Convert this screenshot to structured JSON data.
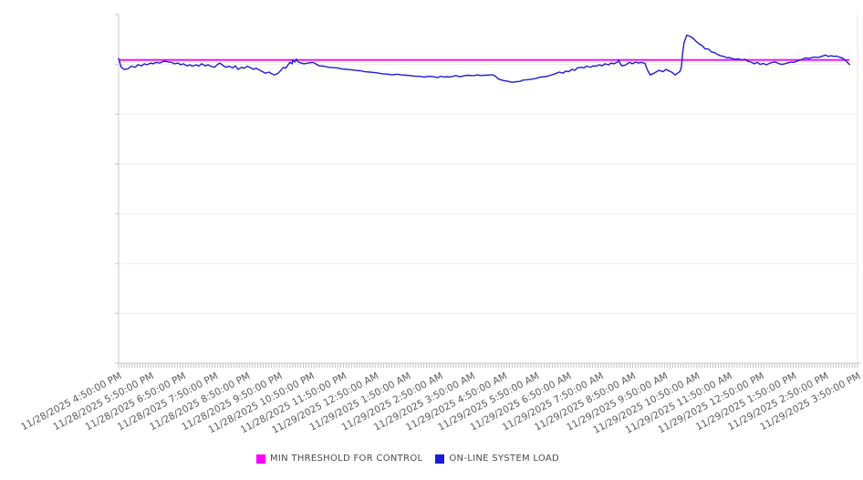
{
  "chart_data": {
    "type": "line",
    "title": "",
    "legend_position": "bottom-center",
    "grid": "horizontal-only",
    "x_axis": {
      "range_minutes": [
        0,
        1380
      ],
      "tick_interval_minutes": 60,
      "minor_tick_interval_minutes": 5,
      "tick_labels": [
        "11/28/2025 4:50:00 PM",
        "11/28/2025 5:50:00 PM",
        "11/28/2025 6:50:00 PM",
        "11/28/2025 7:50:00 PM",
        "11/28/2025 8:50:00 PM",
        "11/28/2025 9:50:00 PM",
        "11/28/2025 10:50:00 PM",
        "11/28/2025 11:50:00 PM",
        "11/29/2025 12:50:00 AM",
        "11/29/2025 1:50:00 AM",
        "11/29/2025 2:50:00 AM",
        "11/29/2025 3:50:00 AM",
        "11/29/2025 4:50:00 AM",
        "11/29/2025 5:50:00 AM",
        "11/29/2025 6:50:00 AM",
        "11/29/2025 7:50:00 AM",
        "11/29/2025 8:50:00 AM",
        "11/29/2025 9:50:00 AM",
        "11/29/2025 10:50:00 AM",
        "11/29/2025 11:50:00 AM",
        "11/29/2025 12:50:00 PM",
        "11/29/2025 1:50:00 PM",
        "11/29/2025 2:50:00 PM",
        "11/29/2025 3:50:00 PM"
      ]
    },
    "y_axis": {
      "labels_visible": false,
      "ylim": [
        0,
        100
      ],
      "gridline_divisions": 7
    },
    "series": [
      {
        "name": "MIN THRESHOLD FOR CONTROL",
        "type": "threshold-line",
        "color": "#ff00ff",
        "value": 87.0,
        "span_minutes": [
          0,
          1365
        ]
      },
      {
        "name": "ON-LINE SYSTEM LOAD",
        "type": "line",
        "color": "#1c1cd8",
        "points": [
          [
            0,
            87.4
          ],
          [
            5,
            84.9
          ],
          [
            10,
            84.3
          ],
          [
            17,
            84.4
          ],
          [
            24,
            85.2
          ],
          [
            31,
            84.9
          ],
          [
            36,
            85.6
          ],
          [
            43,
            85.3
          ],
          [
            48,
            85.9
          ],
          [
            53,
            85.6
          ],
          [
            60,
            86.1
          ],
          [
            65,
            85.9
          ],
          [
            70,
            86.3
          ],
          [
            77,
            86.1
          ],
          [
            82,
            86.5
          ],
          [
            87,
            86.6
          ],
          [
            94,
            86.4
          ],
          [
            99,
            86.3
          ],
          [
            104,
            85.9
          ],
          [
            111,
            86.1
          ],
          [
            116,
            85.6
          ],
          [
            121,
            85.9
          ],
          [
            128,
            85.3
          ],
          [
            133,
            85.6
          ],
          [
            138,
            85.2
          ],
          [
            145,
            85.6
          ],
          [
            150,
            85.2
          ],
          [
            155,
            85.9
          ],
          [
            162,
            85.3
          ],
          [
            167,
            85.6
          ],
          [
            172,
            85.2
          ],
          [
            179,
            84.9
          ],
          [
            184,
            85.6
          ],
          [
            189,
            86.1
          ],
          [
            196,
            85.3
          ],
          [
            201,
            84.9
          ],
          [
            206,
            85.2
          ],
          [
            213,
            84.7
          ],
          [
            218,
            85.3
          ],
          [
            223,
            84.3
          ],
          [
            230,
            84.9
          ],
          [
            235,
            84.6
          ],
          [
            240,
            85.2
          ],
          [
            247,
            84.7
          ],
          [
            252,
            84.3
          ],
          [
            257,
            84.6
          ],
          [
            264,
            84.0
          ],
          [
            269,
            83.6
          ],
          [
            274,
            83.2
          ],
          [
            281,
            83.5
          ],
          [
            286,
            83.0
          ],
          [
            291,
            82.7
          ],
          [
            298,
            83.2
          ],
          [
            303,
            84.0
          ],
          [
            308,
            84.9
          ],
          [
            312,
            84.6
          ],
          [
            315,
            85.3
          ],
          [
            320,
            86.3
          ],
          [
            324,
            85.9
          ],
          [
            325,
            86.9
          ],
          [
            329,
            86.4
          ],
          [
            332,
            87.2
          ],
          [
            334,
            86.6
          ],
          [
            337,
            86.3
          ],
          [
            346,
            85.9
          ],
          [
            354,
            86.1
          ],
          [
            363,
            86.3
          ],
          [
            370,
            85.7
          ],
          [
            375,
            85.3
          ],
          [
            383,
            85.2
          ],
          [
            392,
            84.9
          ],
          [
            400,
            84.8
          ],
          [
            409,
            84.7
          ],
          [
            417,
            84.4
          ],
          [
            426,
            84.3
          ],
          [
            434,
            84.2
          ],
          [
            443,
            84.0
          ],
          [
            451,
            83.9
          ],
          [
            460,
            83.6
          ],
          [
            469,
            83.5
          ],
          [
            477,
            83.4
          ],
          [
            486,
            83.2
          ],
          [
            494,
            83.0
          ],
          [
            503,
            82.9
          ],
          [
            511,
            82.7
          ],
          [
            520,
            82.9
          ],
          [
            528,
            82.7
          ],
          [
            537,
            82.6
          ],
          [
            545,
            82.5
          ],
          [
            554,
            82.3
          ],
          [
            562,
            82.3
          ],
          [
            571,
            82.1
          ],
          [
            579,
            82.3
          ],
          [
            588,
            82.2
          ],
          [
            596,
            81.9
          ],
          [
            601,
            82.3
          ],
          [
            608,
            82.1
          ],
          [
            613,
            82.2
          ],
          [
            618,
            82.1
          ],
          [
            625,
            82.3
          ],
          [
            630,
            82.5
          ],
          [
            636,
            82.2
          ],
          [
            642,
            82.3
          ],
          [
            647,
            82.5
          ],
          [
            653,
            82.6
          ],
          [
            659,
            82.5
          ],
          [
            664,
            82.5
          ],
          [
            670,
            82.7
          ],
          [
            676,
            82.5
          ],
          [
            681,
            82.6
          ],
          [
            687,
            82.6
          ],
          [
            693,
            82.7
          ],
          [
            699,
            82.7
          ],
          [
            704,
            82.3
          ],
          [
            710,
            81.5
          ],
          [
            716,
            81.2
          ],
          [
            721,
            81.0
          ],
          [
            727,
            80.9
          ],
          [
            733,
            80.6
          ],
          [
            738,
            80.6
          ],
          [
            745,
            80.8
          ],
          [
            750,
            80.8
          ],
          [
            755,
            81.2
          ],
          [
            762,
            81.3
          ],
          [
            767,
            81.4
          ],
          [
            772,
            81.5
          ],
          [
            779,
            81.7
          ],
          [
            784,
            81.9
          ],
          [
            789,
            82.1
          ],
          [
            796,
            82.2
          ],
          [
            801,
            82.3
          ],
          [
            806,
            82.6
          ],
          [
            813,
            82.9
          ],
          [
            818,
            83.2
          ],
          [
            823,
            83.5
          ],
          [
            830,
            83.2
          ],
          [
            835,
            83.8
          ],
          [
            840,
            83.6
          ],
          [
            847,
            84.3
          ],
          [
            852,
            84.0
          ],
          [
            857,
            84.7
          ],
          [
            864,
            84.9
          ],
          [
            869,
            84.7
          ],
          [
            874,
            85.2
          ],
          [
            881,
            84.9
          ],
          [
            886,
            85.3
          ],
          [
            891,
            85.2
          ],
          [
            898,
            85.6
          ],
          [
            903,
            85.3
          ],
          [
            908,
            85.9
          ],
          [
            915,
            85.6
          ],
          [
            920,
            86.1
          ],
          [
            925,
            85.9
          ],
          [
            932,
            86.4
          ],
          [
            934,
            87.0
          ],
          [
            937,
            85.9
          ],
          [
            940,
            85.3
          ],
          [
            946,
            85.5
          ],
          [
            954,
            86.3
          ],
          [
            959,
            85.9
          ],
          [
            966,
            86.4
          ],
          [
            971,
            86.1
          ],
          [
            976,
            86.3
          ],
          [
            983,
            86.0
          ],
          [
            988,
            84.0
          ],
          [
            993,
            82.7
          ],
          [
            1000,
            83.2
          ],
          [
            1009,
            84.0
          ],
          [
            1017,
            83.6
          ],
          [
            1022,
            84.3
          ],
          [
            1027,
            83.9
          ],
          [
            1034,
            83.4
          ],
          [
            1039,
            82.7
          ],
          [
            1044,
            83.2
          ],
          [
            1048,
            83.6
          ],
          [
            1051,
            84.9
          ],
          [
            1053,
            88.5
          ],
          [
            1056,
            91.9
          ],
          [
            1060,
            93.7
          ],
          [
            1061,
            94.1
          ],
          [
            1068,
            93.7
          ],
          [
            1073,
            93.2
          ],
          [
            1078,
            92.4
          ],
          [
            1085,
            91.5
          ],
          [
            1090,
            91.1
          ],
          [
            1095,
            90.2
          ],
          [
            1102,
            90.1
          ],
          [
            1107,
            89.3
          ],
          [
            1113,
            89.1
          ],
          [
            1119,
            88.5
          ],
          [
            1124,
            88.2
          ],
          [
            1130,
            88.0
          ],
          [
            1136,
            87.6
          ],
          [
            1141,
            87.7
          ],
          [
            1147,
            87.3
          ],
          [
            1153,
            87.2
          ],
          [
            1158,
            87.3
          ],
          [
            1164,
            87.0
          ],
          [
            1170,
            87.2
          ],
          [
            1175,
            86.6
          ],
          [
            1181,
            86.4
          ],
          [
            1187,
            85.9
          ],
          [
            1193,
            86.3
          ],
          [
            1198,
            85.7
          ],
          [
            1204,
            86.0
          ],
          [
            1210,
            85.6
          ],
          [
            1215,
            86.0
          ],
          [
            1221,
            86.3
          ],
          [
            1227,
            86.4
          ],
          [
            1232,
            86.0
          ],
          [
            1238,
            85.7
          ],
          [
            1244,
            85.9
          ],
          [
            1249,
            86.1
          ],
          [
            1256,
            86.4
          ],
          [
            1261,
            86.3
          ],
          [
            1266,
            86.6
          ],
          [
            1273,
            87.0
          ],
          [
            1278,
            87.2
          ],
          [
            1283,
            87.6
          ],
          [
            1290,
            87.4
          ],
          [
            1295,
            87.7
          ],
          [
            1300,
            87.8
          ],
          [
            1307,
            87.7
          ],
          [
            1312,
            88.0
          ],
          [
            1317,
            88.2
          ],
          [
            1320,
            88.4
          ],
          [
            1325,
            88.0
          ],
          [
            1331,
            88.2
          ],
          [
            1336,
            88.0
          ],
          [
            1341,
            88.1
          ],
          [
            1346,
            87.8
          ],
          [
            1351,
            87.6
          ],
          [
            1354,
            87.3
          ],
          [
            1358,
            86.8
          ],
          [
            1361,
            86.3
          ],
          [
            1365,
            85.7
          ]
        ]
      }
    ]
  }
}
